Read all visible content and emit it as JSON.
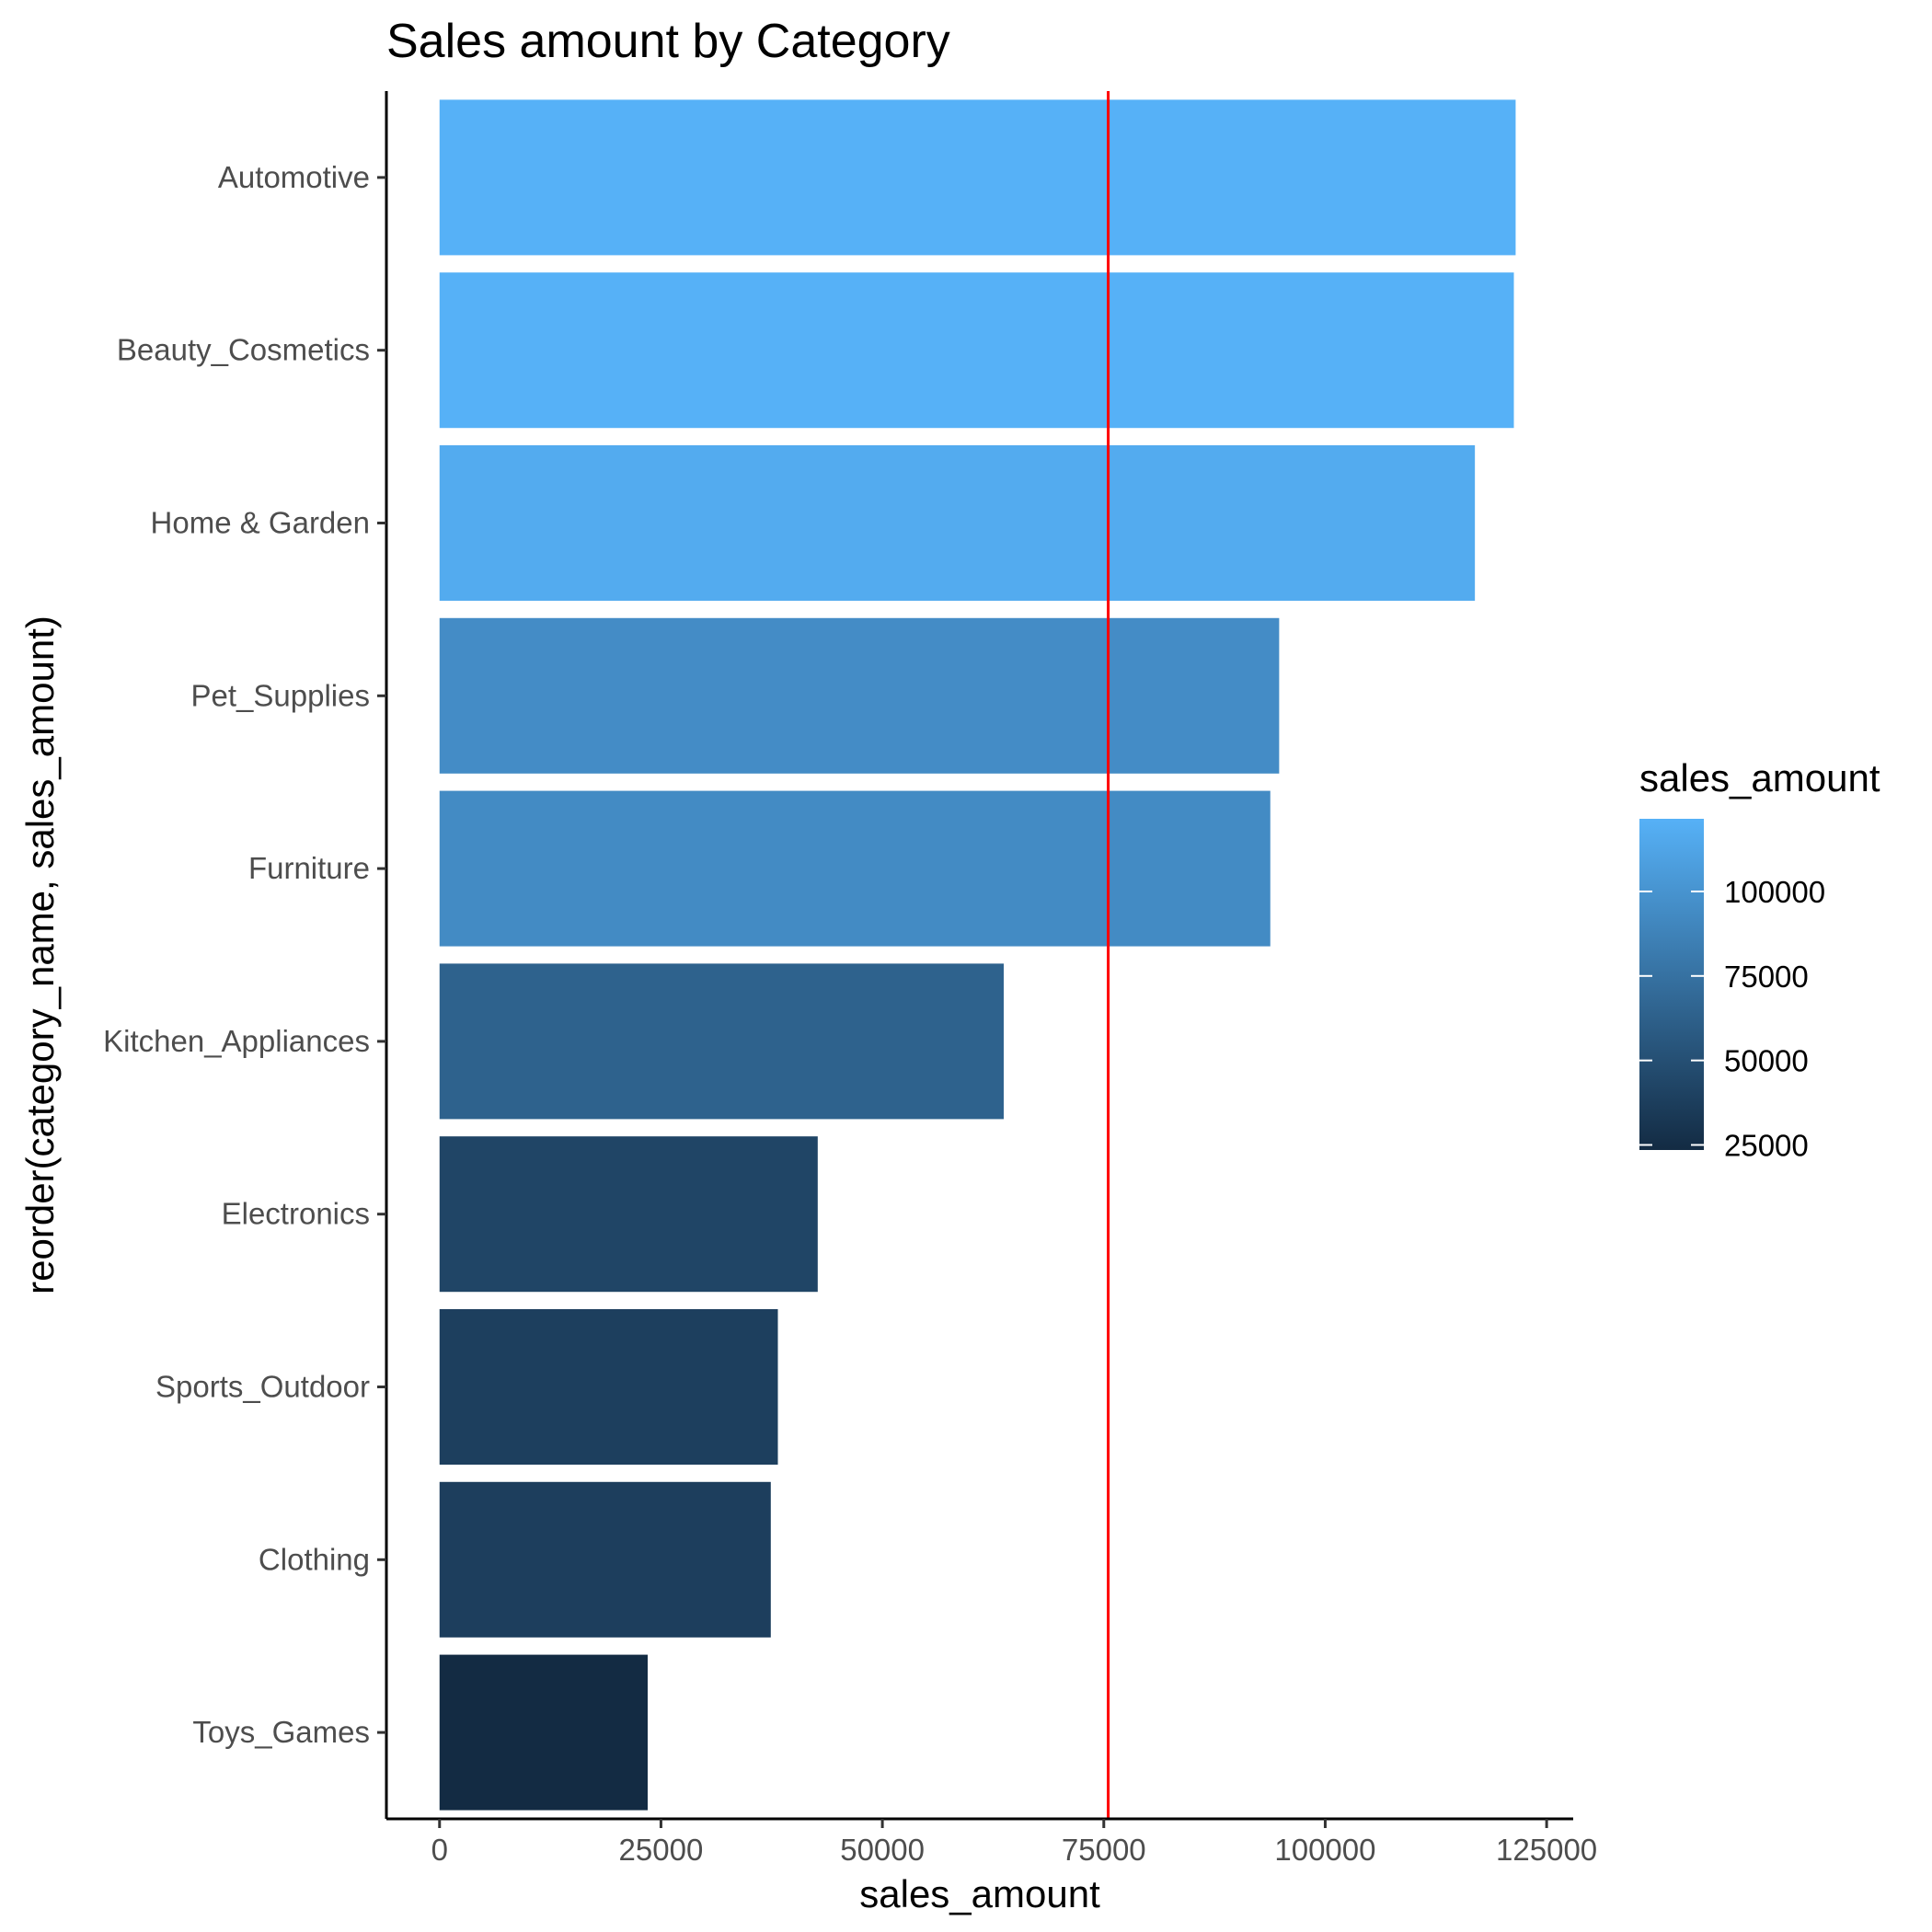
{
  "chart_data": {
    "type": "bar",
    "orientation": "horizontal",
    "title": "Sales amount by Category",
    "xlabel": "sales_amount",
    "ylabel": "reorder(category_name, sales_amount)",
    "categories": [
      "Automotive",
      "Beauty_Cosmetics",
      "Home & Garden",
      "Pet_Supplies",
      "Furniture",
      "Kitchen_Appliances",
      "Electronics",
      "Sports_Outdoor",
      "Clothing",
      "Toys_Games"
    ],
    "values": [
      121500,
      121300,
      116900,
      94800,
      93800,
      63700,
      42700,
      38200,
      37400,
      23500
    ],
    "xlim": [
      -6000,
      128000
    ],
    "xticks": [
      0,
      25000,
      50000,
      75000,
      100000,
      125000
    ],
    "xtick_labels": [
      "0",
      "25000",
      "50000",
      "75000",
      "100000",
      "125000"
    ],
    "reference_line": {
      "x": 75500,
      "color": "#ff0000"
    },
    "grid": false,
    "legend": {
      "title": "sales_amount",
      "position": "right",
      "type": "colorbar",
      "range": [
        23500,
        121500
      ],
      "ticks": [
        25000,
        50000,
        75000,
        100000
      ],
      "tick_labels": [
        "25000",
        "50000",
        "75000",
        "100000"
      ],
      "low_color": "#132b43",
      "high_color": "#56b1f7"
    }
  }
}
